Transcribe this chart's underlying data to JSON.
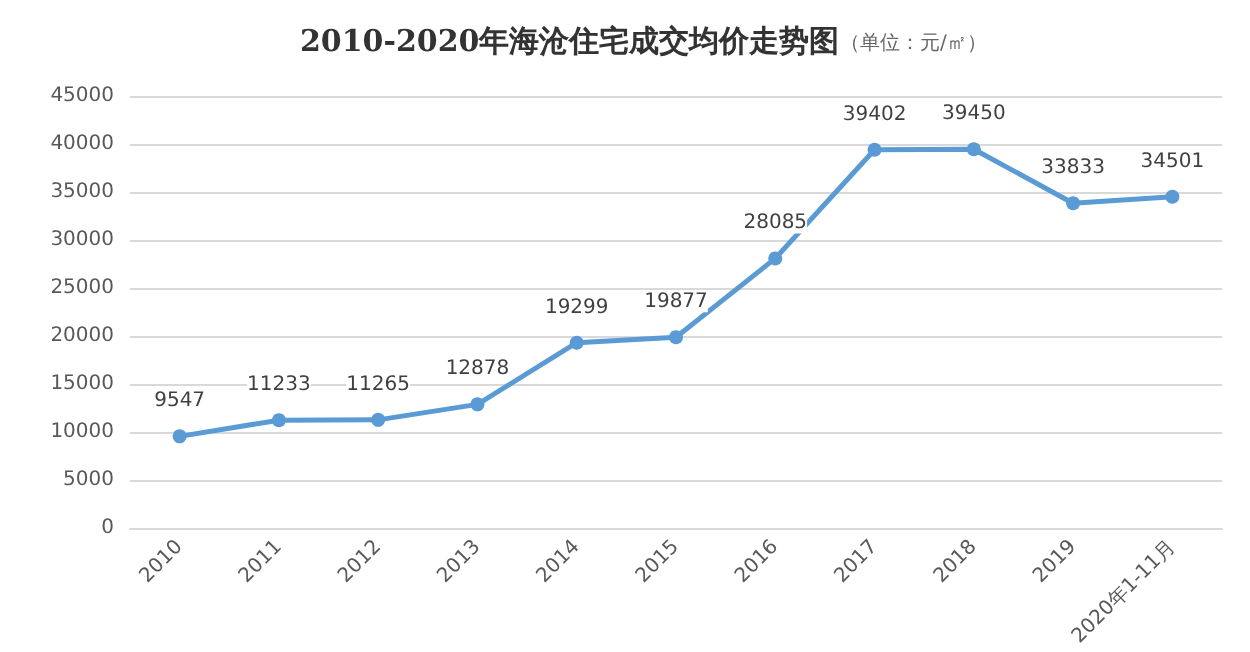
{
  "chart_data": {
    "type": "line",
    "title": "2010-2020年海沧住宅成交均价走势图",
    "subtitle": "（单位：元/㎡）",
    "categories": [
      "2010",
      "2011",
      "2012",
      "2013",
      "2014",
      "2015",
      "2016",
      "2017",
      "2018",
      "2019",
      "2020年1-11月"
    ],
    "series": [
      {
        "color": "#5b9bd5",
        "values": [
          9547,
          11233,
          11265,
          12878,
          19299,
          19877,
          28085,
          39402,
          39450,
          33833,
          34501
        ]
      }
    ],
    "ylim": [
      0,
      45000
    ],
    "yticks": [
      0,
      5000,
      10000,
      15000,
      20000,
      25000,
      30000,
      35000,
      40000,
      45000
    ],
    "grid": "y",
    "marker": "circle",
    "data_labels": true
  }
}
